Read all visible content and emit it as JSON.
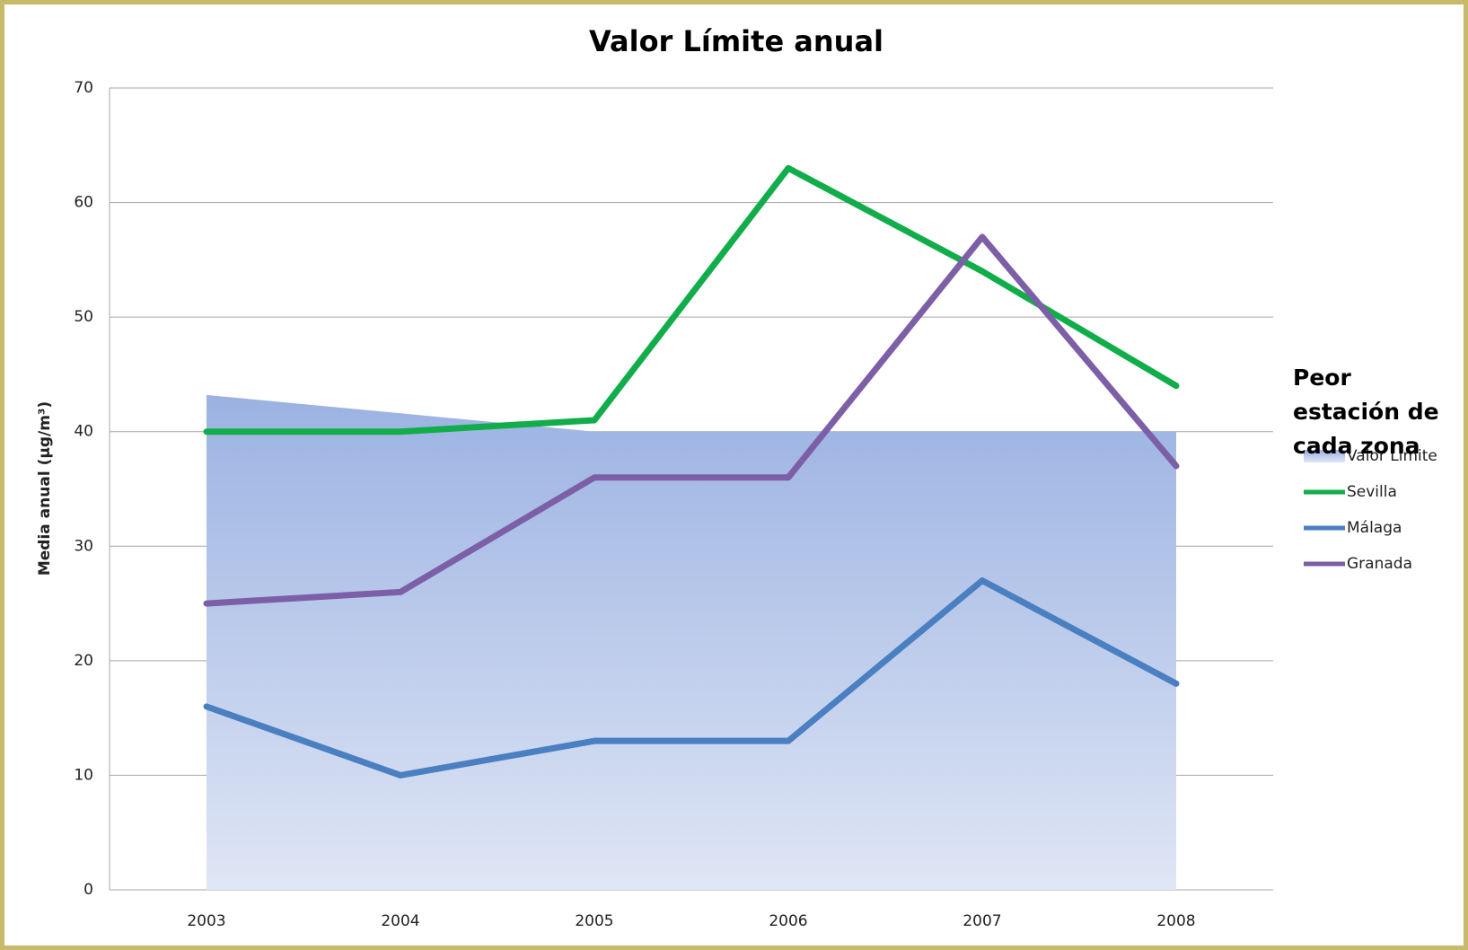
{
  "chart_data": {
    "type": "line",
    "title": "Valor Límite anual",
    "y_axis_label": "Media anual (µg/m³)",
    "legend_title": "Peor estación de cada zona",
    "categories": [
      "2003",
      "2004",
      "2005",
      "2006",
      "2007",
      "2008"
    ],
    "series": [
      {
        "name": "Valor Límite",
        "color": "#9bb2e2",
        "style": "area",
        "values": [
          43.2,
          41.6,
          40,
          40,
          40,
          40
        ]
      },
      {
        "name": "Sevilla",
        "color": "#12ad4b",
        "style": "line",
        "values": [
          40,
          40,
          41,
          63,
          54,
          44
        ]
      },
      {
        "name": "Málaga",
        "color": "#4a7fc1",
        "style": "line",
        "values": [
          16,
          10,
          13,
          13,
          27,
          18
        ]
      },
      {
        "name": "Granada",
        "color": "#7c5fa6",
        "style": "line",
        "values": [
          25,
          26,
          36,
          36,
          57,
          37
        ]
      }
    ],
    "ylim": [
      0,
      70
    ],
    "yticks": [
      0,
      10,
      20,
      30,
      40,
      50,
      60,
      70
    ],
    "grid": true,
    "legend": "right"
  }
}
